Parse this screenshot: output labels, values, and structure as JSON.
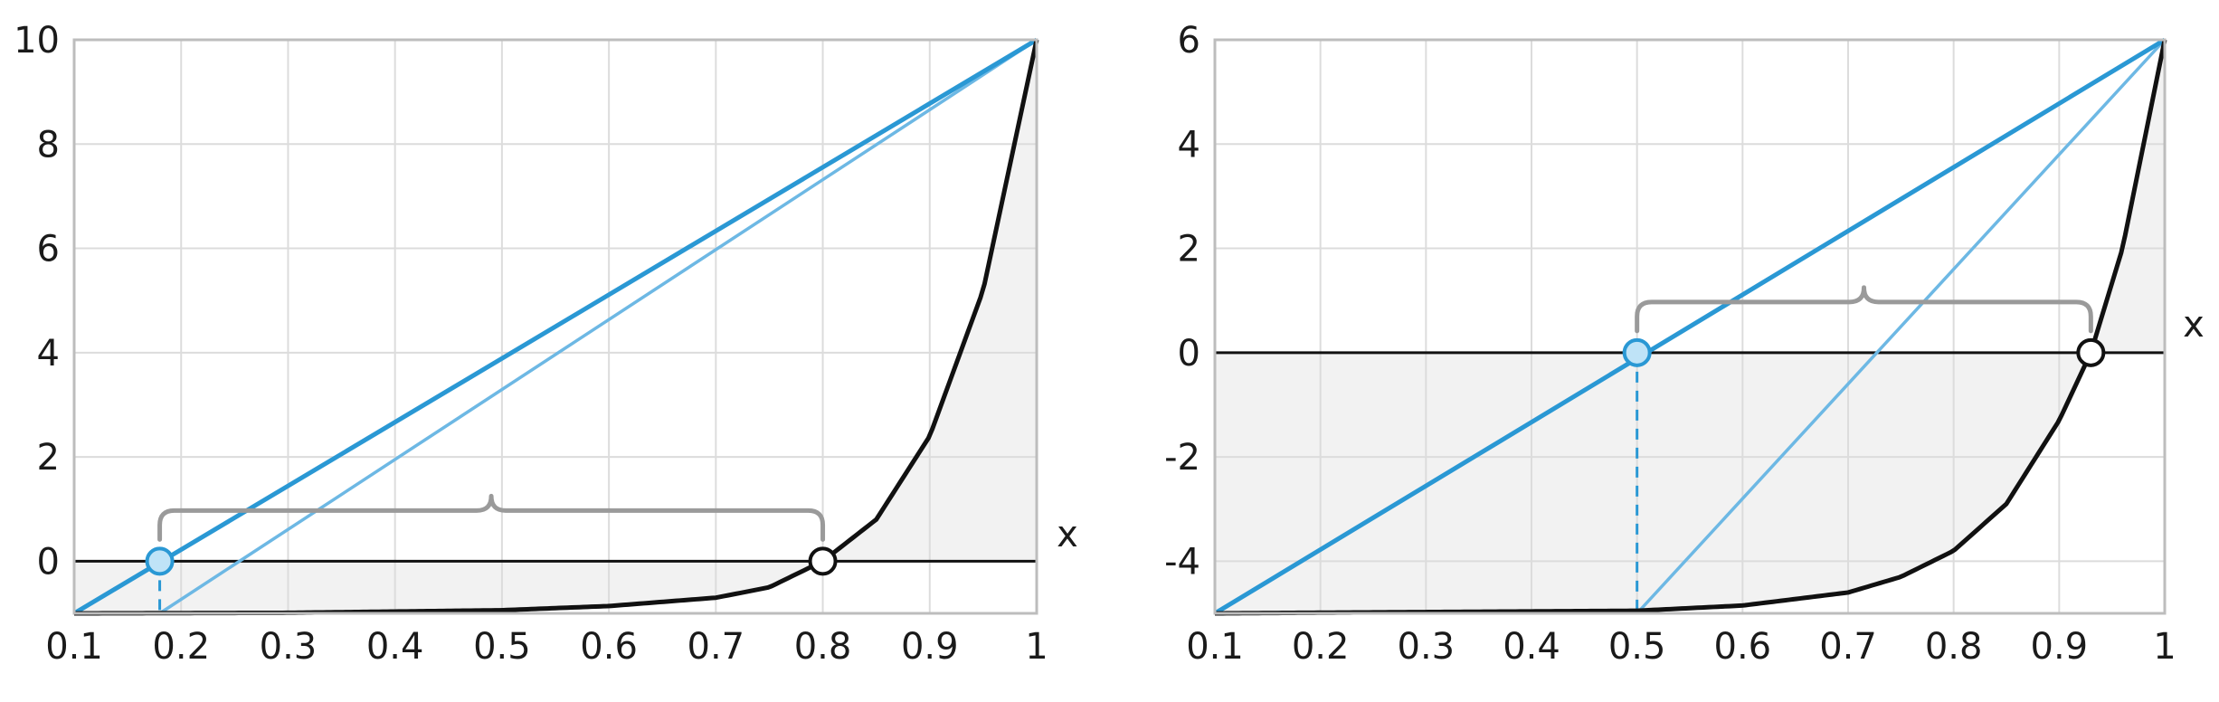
{
  "chart_data": [
    {
      "type": "line",
      "title": "",
      "xlabel": "x",
      "ylabel": "",
      "xlim": [
        0.1,
        1
      ],
      "ylim": [
        -1,
        10
      ],
      "x_ticks": [
        "0.1",
        "0.2",
        "0.3",
        "0.4",
        "0.5",
        "0.6",
        "0.7",
        "0.8",
        "0.9",
        "1"
      ],
      "x_tick_values": [
        0.1,
        0.2,
        0.3,
        0.4,
        0.5,
        0.6,
        0.7,
        0.8,
        0.9,
        1
      ],
      "y_ticks": [
        "0",
        "2",
        "4",
        "6",
        "8",
        "10"
      ],
      "y_tick_values": [
        0,
        2,
        4,
        6,
        8,
        10
      ],
      "grid": true,
      "series": [
        {
          "style": "black-curve",
          "color": "#111111",
          "x": [
            0.1,
            0.3,
            0.5,
            0.6,
            0.7,
            0.75,
            0.8,
            0.85,
            0.9,
            0.95,
            1
          ],
          "y": [
            -1.0,
            -0.99,
            -0.94,
            -0.86,
            -0.7,
            -0.5,
            0.0,
            0.8,
            2.4,
            5.2,
            10.0
          ]
        },
        {
          "style": "blue-thick",
          "color": "#2A98D4",
          "x": [
            0.1,
            1
          ],
          "y": [
            -1,
            10
          ]
        },
        {
          "style": "blue-thin",
          "color": "#6DB8E4",
          "x": [
            0.18,
            1
          ],
          "y": [
            -1,
            10
          ]
        }
      ],
      "points": [
        {
          "x": 0.18,
          "y": 0,
          "style": "blue"
        },
        {
          "x": 0.8,
          "y": 0,
          "style": "white"
        }
      ],
      "dashed_drop": {
        "x": 0.18,
        "from": 0,
        "to": -1
      },
      "brace": {
        "from": 0.18,
        "to": 0.8
      },
      "shading_color": "#F2F2F2",
      "grid_color": "#DCDCDC",
      "frame_color": "#BDBDBD",
      "brace_color": "#9A9A9A"
    },
    {
      "type": "line",
      "title": "",
      "xlabel": "x",
      "ylabel": "",
      "xlim": [
        0.1,
        1
      ],
      "ylim": [
        -5,
        6
      ],
      "x_ticks": [
        "0.1",
        "0.2",
        "0.3",
        "0.4",
        "0.5",
        "0.6",
        "0.7",
        "0.8",
        "0.9",
        "1"
      ],
      "x_tick_values": [
        0.1,
        0.2,
        0.3,
        0.4,
        0.5,
        0.6,
        0.7,
        0.8,
        0.9,
        1
      ],
      "y_ticks": [
        "-4",
        "-2",
        "0",
        "2",
        "4",
        "6"
      ],
      "y_tick_values": [
        -4,
        -2,
        0,
        2,
        4,
        6
      ],
      "grid": true,
      "series": [
        {
          "style": "black-curve",
          "color": "#111111",
          "x": [
            0.1,
            0.5,
            0.6,
            0.7,
            0.75,
            0.8,
            0.85,
            0.9,
            0.93,
            0.96,
            1
          ],
          "y": [
            -5.0,
            -4.95,
            -4.85,
            -4.6,
            -4.3,
            -3.8,
            -2.9,
            -1.3,
            0.0,
            2.0,
            6.0
          ]
        },
        {
          "style": "blue-thick",
          "color": "#2A98D4",
          "x": [
            0.1,
            1
          ],
          "y": [
            -5,
            6
          ]
        },
        {
          "style": "blue-thin",
          "color": "#6DB8E4",
          "x": [
            0.5,
            1
          ],
          "y": [
            -5,
            6
          ]
        }
      ],
      "points": [
        {
          "x": 0.5,
          "y": 0,
          "style": "blue"
        },
        {
          "x": 0.93,
          "y": 0,
          "style": "white"
        }
      ],
      "dashed_drop": {
        "x": 0.5,
        "from": 0,
        "to": -5
      },
      "brace": {
        "from": 0.5,
        "to": 0.93
      },
      "shading_color": "#F2F2F2",
      "grid_color": "#DCDCDC",
      "frame_color": "#BDBDBD",
      "brace_color": "#9A9A9A"
    }
  ]
}
